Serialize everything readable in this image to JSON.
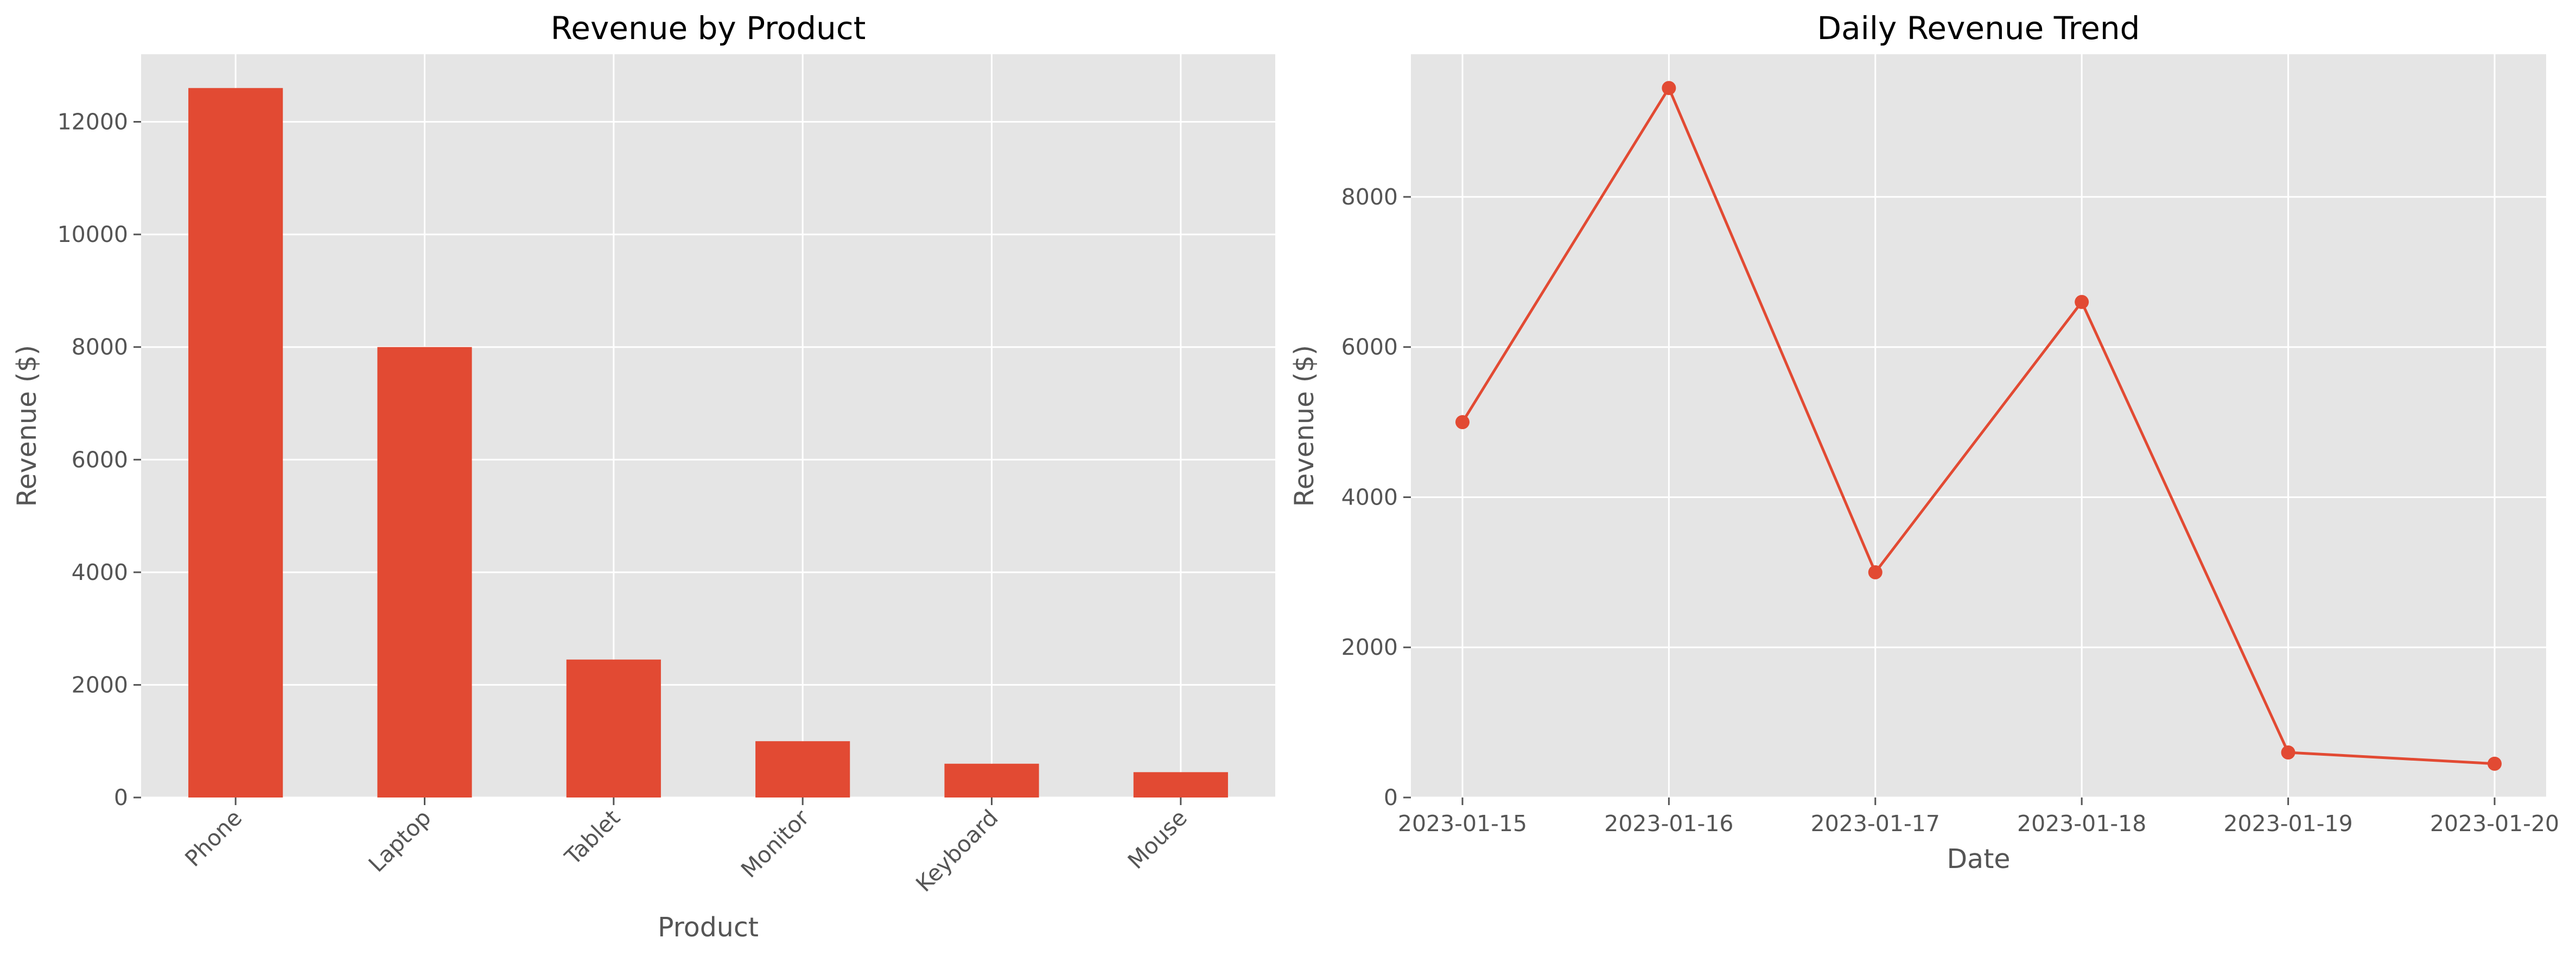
{
  "chart_data": [
    {
      "type": "bar",
      "title": "Revenue by Product",
      "xlabel": "Product",
      "ylabel": "Revenue ($)",
      "categories": [
        "Phone",
        "Laptop",
        "Tablet",
        "Monitor",
        "Keyboard",
        "Mouse"
      ],
      "values": [
        12600,
        8000,
        2450,
        1000,
        600,
        450
      ],
      "ylim": [
        0,
        13200
      ],
      "yticks": [
        0,
        2000,
        4000,
        6000,
        8000,
        10000,
        12000
      ],
      "ytick_labels": [
        "0",
        "2000",
        "4000",
        "6000",
        "8000",
        "10000",
        "12000"
      ],
      "grid": true,
      "bar_color": "#E24A33",
      "background_color": "#E5E5E5"
    },
    {
      "type": "line",
      "title": "Daily Revenue Trend",
      "xlabel": "Date",
      "ylabel": "Revenue ($)",
      "x": [
        "2023-01-15",
        "2023-01-16",
        "2023-01-17",
        "2023-01-18",
        "2023-01-19",
        "2023-01-20"
      ],
      "values": [
        5000,
        9450,
        3000,
        6600,
        600,
        450
      ],
      "ylim": [
        0,
        9900
      ],
      "yticks": [
        0,
        2000,
        4000,
        6000,
        8000
      ],
      "ytick_labels": [
        "0",
        "2000",
        "4000",
        "6000",
        "8000"
      ],
      "grid": true,
      "marker": "circle",
      "line_color": "#E24A33",
      "background_color": "#E5E5E5"
    }
  ]
}
